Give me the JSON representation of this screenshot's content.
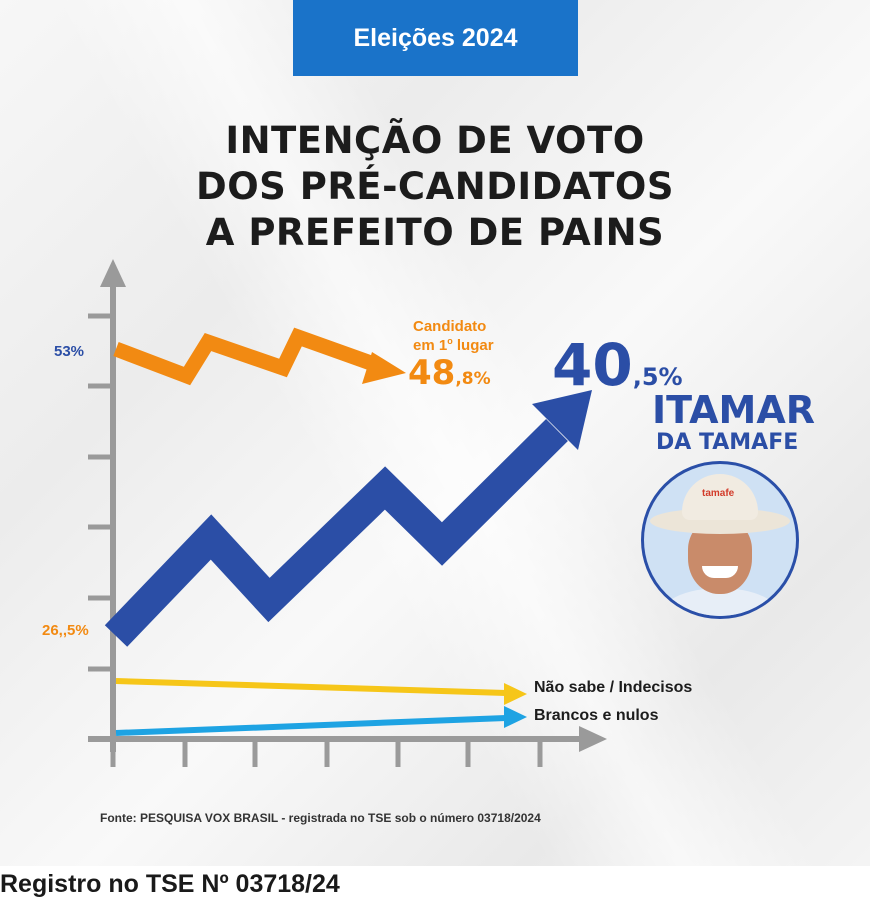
{
  "badge": "Eleições 2024",
  "title_lines": [
    "INTENÇÃO DE VOTO",
    "DOS PRÉ-CANDIDATOS",
    "A PREFEITO DE PAINS"
  ],
  "leader_note": {
    "line1": "Candidato",
    "line2_pre": "em 1",
    "line2_sup": "o",
    "line2_post": " lugar",
    "value_main": "48",
    "value_dec": ",8%"
  },
  "itamar": {
    "value_main": "40",
    "value_dec": ",5%",
    "name1": "ITAMAR",
    "name2": "DA TAMAFE",
    "photo_logo": "tamafe"
  },
  "left_labels": {
    "top": "53%",
    "bottom": "26,,5%"
  },
  "lines": {
    "indecisos": "Não sabe / Indecisos",
    "brancos": "Brancos e nulos"
  },
  "source": "Fonte: PESQUISA VOX BRASIL - registrada no TSE sob o número 03718/2024",
  "footer": "Registro no TSE Nº 03718/24",
  "colors": {
    "orange": "#f28a12",
    "blue": "#2b4ea6",
    "yellow": "#f6c619",
    "cyan": "#1ea3e3",
    "badge": "#1a73c9",
    "axis": "#9a9a9a"
  },
  "chart_data": {
    "type": "line",
    "series": [
      {
        "name": "Candidato em 1º lugar",
        "start": 53,
        "end": 48.8,
        "color": "#f28a12"
      },
      {
        "name": "ITAMAR DA TAMAFE",
        "start": 26.5,
        "end": 40.5,
        "color": "#2b4ea6"
      },
      {
        "name": "Não sabe / Indecisos",
        "color": "#f6c619"
      },
      {
        "name": "Brancos e nulos",
        "color": "#1ea3e3"
      }
    ],
    "grid": false
  }
}
